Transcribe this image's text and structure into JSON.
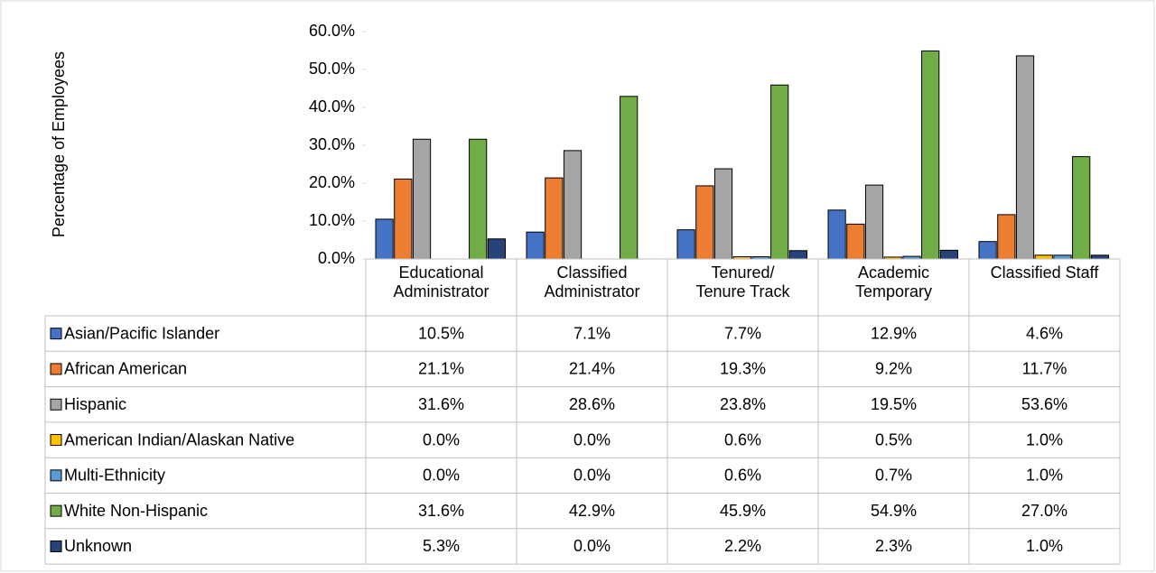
{
  "chart_data": {
    "type": "bar",
    "y_label": "Percentage of Employees",
    "categories": [
      "Educational Administrator",
      "Classified Administrator",
      "Tenured/ Tenure Track",
      "Academic Temporary",
      "Classified Staff"
    ],
    "series": [
      {
        "name": "Asian/Pacific Islander",
        "color": "#4472c4",
        "values": [
          10.5,
          7.1,
          7.7,
          12.9,
          4.6
        ],
        "value_labels": [
          "10.5%",
          "7.1%",
          "7.7%",
          "12.9%",
          "4.6%"
        ]
      },
      {
        "name": "African American",
        "color": "#ed7d31",
        "values": [
          21.1,
          21.4,
          19.3,
          9.2,
          11.7
        ],
        "value_labels": [
          "21.1%",
          "21.4%",
          "19.3%",
          "9.2%",
          "11.7%"
        ]
      },
      {
        "name": "Hispanic",
        "color": "#a5a5a5",
        "values": [
          31.6,
          28.6,
          23.8,
          19.5,
          53.6
        ],
        "value_labels": [
          "31.6%",
          "28.6%",
          "23.8%",
          "19.5%",
          "53.6%"
        ]
      },
      {
        "name": "American Indian/Alaskan Native",
        "color": "#ffc000",
        "values": [
          0.0,
          0.0,
          0.6,
          0.5,
          1.0
        ],
        "value_labels": [
          "0.0%",
          "0.0%",
          "0.6%",
          "0.5%",
          "1.0%"
        ]
      },
      {
        "name": "Multi-Ethnicity",
        "color": "#5b9bd5",
        "values": [
          0.0,
          0.0,
          0.6,
          0.7,
          1.0
        ],
        "value_labels": [
          "0.0%",
          "0.0%",
          "0.6%",
          "0.7%",
          "1.0%"
        ]
      },
      {
        "name": "White Non-Hispanic",
        "color": "#70ad47",
        "values": [
          31.6,
          42.9,
          45.9,
          54.9,
          27.0
        ],
        "value_labels": [
          "31.6%",
          "42.9%",
          "45.9%",
          "54.9%",
          "27.0%"
        ]
      },
      {
        "name": "Unknown",
        "color": "#264478",
        "values": [
          5.3,
          0.0,
          2.2,
          2.3,
          1.0
        ],
        "value_labels": [
          "5.3%",
          "0.0%",
          "2.2%",
          "2.3%",
          "1.0%"
        ]
      }
    ],
    "ylim": [
      0,
      60
    ],
    "yticks": [
      {
        "value": 0,
        "label": "0.0%"
      },
      {
        "value": 10,
        "label": "10.0%"
      },
      {
        "value": 20,
        "label": "20.0%"
      },
      {
        "value": 30,
        "label": "30.0%"
      },
      {
        "value": 40,
        "label": "40.0%"
      },
      {
        "value": 50,
        "label": "50.0%"
      },
      {
        "value": 60,
        "label": "60.0%"
      }
    ],
    "grid": false
  }
}
